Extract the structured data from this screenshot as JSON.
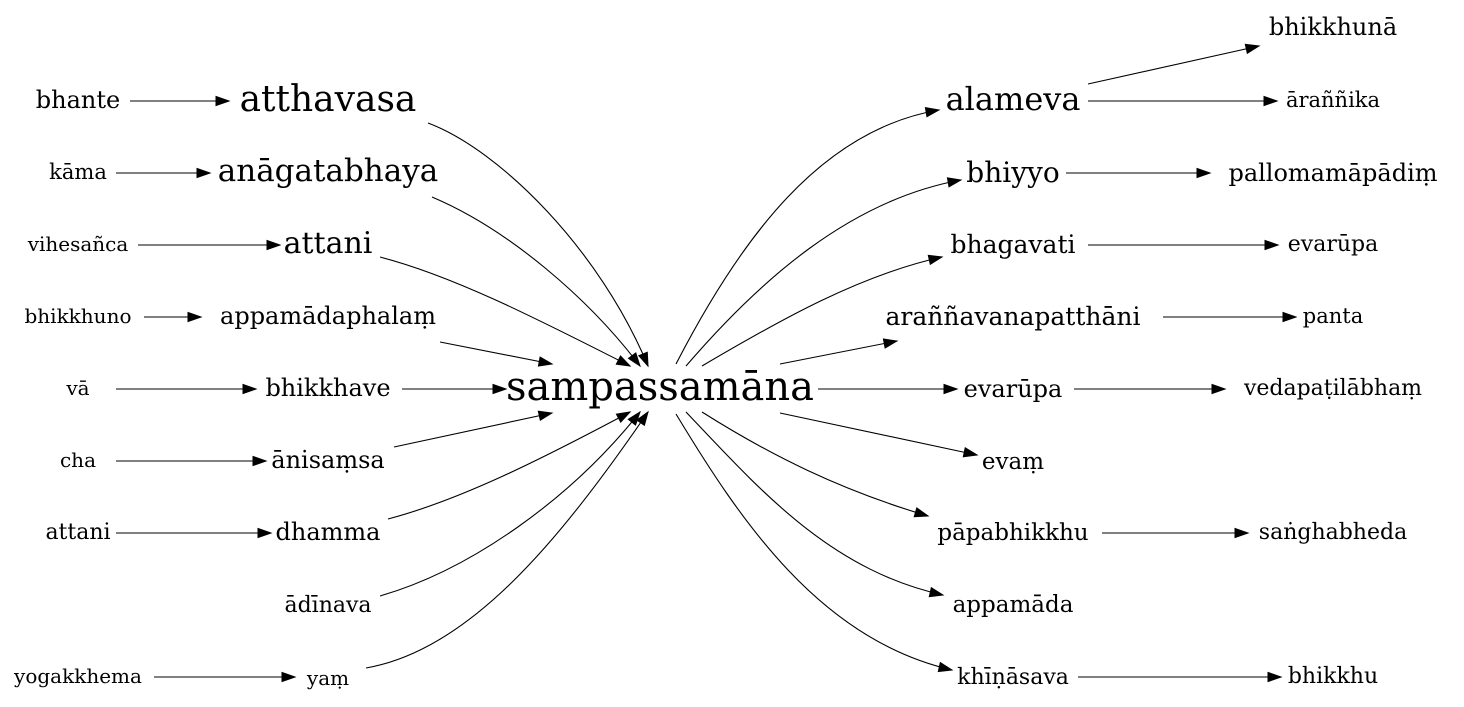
{
  "graph": {
    "center": "sampassamāna",
    "left_nodes": [
      {
        "label": "atthavasa",
        "source": "bhante"
      },
      {
        "label": "anāgatabhaya",
        "source": "kāma"
      },
      {
        "label": "attani",
        "source": "vihesañca"
      },
      {
        "label": "appamādaphalaṃ",
        "source": "bhikkhuno"
      },
      {
        "label": "bhikkhave",
        "source": "vā"
      },
      {
        "label": "ānisaṃsa",
        "source": "cha"
      },
      {
        "label": "dhamma",
        "source": "attani"
      },
      {
        "label": "ādīnava",
        "source": ""
      },
      {
        "label": "yaṃ",
        "source": "yogakkhema"
      }
    ],
    "right_nodes": [
      {
        "label": "alameva",
        "targets": [
          "bhikkhunā",
          "āraññika"
        ]
      },
      {
        "label": "bhiyyo",
        "targets": [
          "pallomamāpādiṃ"
        ]
      },
      {
        "label": "bhagavati",
        "targets": [
          "evarūpa"
        ]
      },
      {
        "label": "araññavanapatthāni",
        "targets": [
          "panta"
        ]
      },
      {
        "label": "evarūpa",
        "targets": [
          "vedapaṭilābhaṃ"
        ]
      },
      {
        "label": "evaṃ",
        "targets": []
      },
      {
        "label": "pāpabhikkhu",
        "targets": [
          "saṅghabheda"
        ]
      },
      {
        "label": "appamāda",
        "targets": []
      },
      {
        "label": "khīṇāsava",
        "targets": [
          "bhikkhu"
        ]
      }
    ]
  },
  "colors": {
    "ink": "#000000",
    "background": "#ffffff"
  }
}
